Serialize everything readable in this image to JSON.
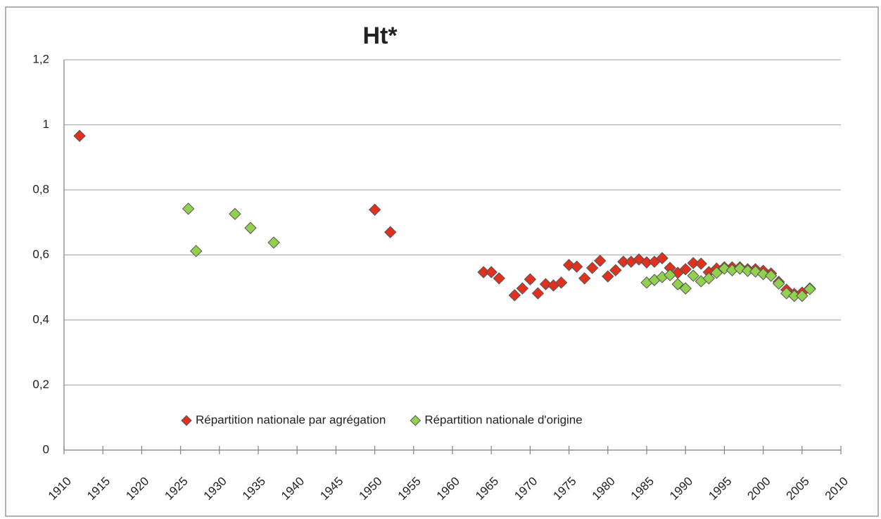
{
  "chart_data": {
    "type": "scatter",
    "title": "Ht*",
    "xlim": [
      1910,
      2010
    ],
    "xticks": [
      1910,
      1915,
      1920,
      1925,
      1930,
      1935,
      1940,
      1945,
      1950,
      1955,
      1960,
      1965,
      1970,
      1975,
      1980,
      1985,
      1990,
      1995,
      2000,
      2005,
      2010
    ],
    "ylim": [
      0,
      1.2
    ],
    "yticks": [
      0,
      {
        "value": 0.2,
        "label": "0,2"
      },
      {
        "value": 0.4,
        "label": "0,4"
      },
      {
        "value": 0.6,
        "label": "0,6"
      },
      {
        "value": 0.8,
        "label": "0,8"
      },
      1,
      {
        "value": 1.2,
        "label": "1,2"
      }
    ],
    "grid": true,
    "legend": "bottom",
    "series": [
      {
        "name": "Répartition nationale par agrégation",
        "color": "#e0301e",
        "x": [
          1912,
          1950,
          1952,
          1964,
          1965,
          1966,
          1968,
          1969,
          1970,
          1971,
          1972,
          1973,
          1974,
          1975,
          1976,
          1977,
          1978,
          1979,
          1980,
          1981,
          1982,
          1983,
          1984,
          1985,
          1986,
          1987,
          1988,
          1989,
          1990,
          1991,
          1992,
          1993,
          1994,
          1995,
          1996,
          1997,
          1998,
          1999,
          2000,
          2001,
          2002,
          2003,
          2004,
          2005,
          2006
        ],
        "values": [
          0.966,
          0.739,
          0.67,
          0.547,
          0.547,
          0.528,
          0.476,
          0.497,
          0.525,
          0.482,
          0.51,
          0.506,
          0.515,
          0.569,
          0.564,
          0.528,
          0.56,
          0.582,
          0.534,
          0.553,
          0.579,
          0.579,
          0.586,
          0.577,
          0.579,
          0.59,
          0.56,
          0.545,
          0.556,
          0.575,
          0.573,
          0.547,
          0.558,
          0.562,
          0.562,
          0.562,
          0.556,
          0.556,
          0.551,
          0.543,
          0.517,
          0.493,
          0.48,
          0.484,
          0.497
        ]
      },
      {
        "name": "Répartition nationale d'origine",
        "color": "#92d050",
        "x": [
          1926,
          1927,
          1932,
          1934,
          1937,
          1985,
          1986,
          1987,
          1988,
          1989,
          1990,
          1991,
          1992,
          1993,
          1994,
          1995,
          1996,
          1997,
          1998,
          1999,
          2000,
          2001,
          2002,
          2003,
          2004,
          2005,
          2006
        ],
        "values": [
          0.742,
          0.612,
          0.726,
          0.683,
          0.638,
          0.515,
          0.523,
          0.532,
          0.538,
          0.51,
          0.497,
          0.536,
          0.519,
          0.528,
          0.545,
          0.558,
          0.553,
          0.558,
          0.551,
          0.549,
          0.541,
          0.536,
          0.512,
          0.482,
          0.474,
          0.474,
          0.495
        ]
      }
    ]
  }
}
